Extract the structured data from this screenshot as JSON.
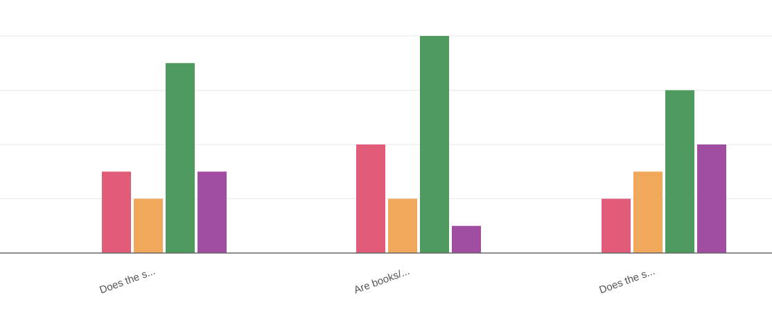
{
  "chart_data": {
    "type": "bar",
    "categories": [
      "Does the s...",
      "Are books/...",
      "Does the s..."
    ],
    "series": [
      {
        "values": [
          3,
          4,
          2
        ],
        "color": "#e05c79"
      },
      {
        "values": [
          2,
          2,
          3
        ],
        "color": "#f0a85a"
      },
      {
        "values": [
          7,
          8,
          6
        ],
        "color": "#4f9a5e"
      },
      {
        "values": [
          3,
          1,
          4
        ],
        "color": "#a14ea2"
      }
    ],
    "ylim": [
      0,
      8
    ],
    "grid": true,
    "legend": "none",
    "xlabel": "",
    "ylabel": ""
  }
}
